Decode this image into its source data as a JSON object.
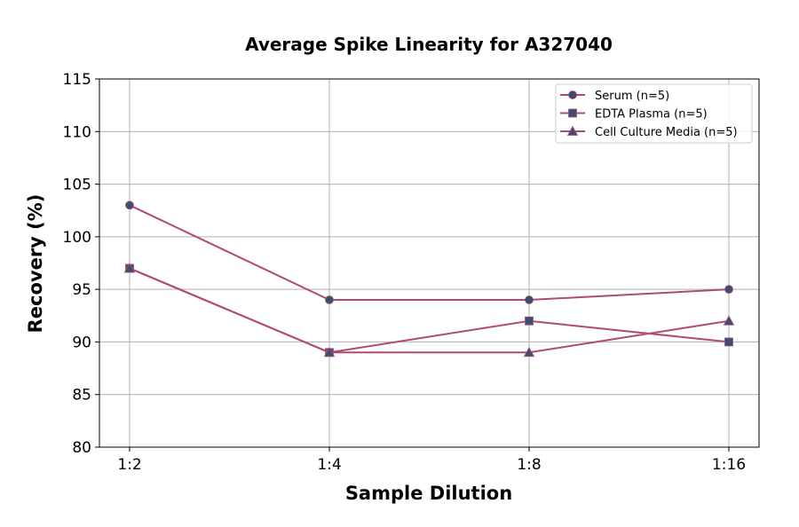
{
  "chart_data": {
    "type": "line",
    "title": "Average Spike Linearity for A327040",
    "xlabel": "Sample Dilution",
    "ylabel": "Recovery (%)",
    "categories": [
      "1:2",
      "1:4",
      "1:8",
      "1:16"
    ],
    "ylim": [
      80,
      115
    ],
    "yticks": [
      80,
      85,
      90,
      95,
      100,
      105,
      110,
      115
    ],
    "grid": true,
    "legend_placement": "top-right",
    "line_color": "#b04a72",
    "marker_color": "#3a4f72",
    "series": [
      {
        "name": "Serum (n=5)",
        "marker": "circle",
        "values": [
          103,
          94,
          94,
          95
        ]
      },
      {
        "name": "EDTA Plasma (n=5)",
        "marker": "square",
        "values": [
          97,
          89,
          92,
          90
        ]
      },
      {
        "name": "Cell Culture Media (n=5)",
        "marker": "triangle",
        "values": [
          97,
          89,
          89,
          92
        ]
      }
    ]
  }
}
